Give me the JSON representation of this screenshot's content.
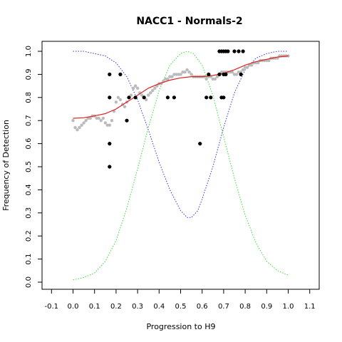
{
  "chart_data": {
    "type": "scatter",
    "title": "NACC1 - Normals-2",
    "xlabel": "Progression to H9",
    "ylabel": "Frequency of Detection",
    "xlim": [
      -0.1,
      1.1
    ],
    "ylim": [
      0.0,
      1.0
    ],
    "x_ticks": [
      "-0.1",
      "0.0",
      "0.1",
      "0.2",
      "0.3",
      "0.4",
      "0.5",
      "0.6",
      "0.7",
      "0.8",
      "0.9",
      "1.0",
      "1.1"
    ],
    "y_ticks": [
      "0.0",
      "0.1",
      "0.2",
      "0.3",
      "0.4",
      "0.5",
      "0.6",
      "0.7",
      "0.8",
      "0.9",
      "1.0"
    ],
    "grid": false,
    "series": [
      {
        "kind": "points",
        "color": "#000000",
        "points": [
          [
            0.17,
            0.9
          ],
          [
            0.17,
            0.8
          ],
          [
            0.17,
            0.6
          ],
          [
            0.17,
            0.5
          ],
          [
            0.22,
            0.9
          ],
          [
            0.25,
            0.7
          ],
          [
            0.26,
            0.8
          ],
          [
            0.29,
            0.8
          ],
          [
            0.33,
            0.8
          ],
          [
            0.44,
            0.8
          ],
          [
            0.47,
            0.8
          ],
          [
            0.59,
            0.6
          ],
          [
            0.62,
            0.8
          ],
          [
            0.64,
            0.8
          ],
          [
            0.63,
            0.9
          ],
          [
            0.68,
            0.9
          ],
          [
            0.69,
            0.8
          ],
          [
            0.7,
            0.8
          ],
          [
            0.7,
            0.9
          ],
          [
            0.71,
            0.9
          ],
          [
            0.68,
            1.0
          ],
          [
            0.69,
            1.0
          ],
          [
            0.7,
            1.0
          ],
          [
            0.71,
            1.0
          ],
          [
            0.72,
            1.0
          ],
          [
            0.75,
            1.0
          ],
          [
            0.77,
            1.0
          ],
          [
            0.79,
            1.0
          ],
          [
            0.78,
            0.9
          ]
        ]
      },
      {
        "kind": "smoothed-points",
        "color": "#bbbbbb",
        "points": [
          [
            0.0,
            0.7
          ],
          [
            0.01,
            0.67
          ],
          [
            0.02,
            0.66
          ],
          [
            0.03,
            0.67
          ],
          [
            0.04,
            0.68
          ],
          [
            0.05,
            0.69
          ],
          [
            0.06,
            0.7
          ],
          [
            0.07,
            0.71
          ],
          [
            0.08,
            0.71
          ],
          [
            0.09,
            0.72
          ],
          [
            0.1,
            0.72
          ],
          [
            0.11,
            0.71
          ],
          [
            0.12,
            0.71
          ],
          [
            0.13,
            0.7
          ],
          [
            0.14,
            0.71
          ],
          [
            0.15,
            0.69
          ],
          [
            0.16,
            0.68
          ],
          [
            0.17,
            0.68
          ],
          [
            0.18,
            0.7
          ],
          [
            0.19,
            0.74
          ],
          [
            0.2,
            0.78
          ],
          [
            0.21,
            0.8
          ],
          [
            0.22,
            0.79
          ],
          [
            0.23,
            0.77
          ],
          [
            0.24,
            0.76
          ],
          [
            0.25,
            0.78
          ],
          [
            0.26,
            0.8
          ],
          [
            0.27,
            0.81
          ],
          [
            0.28,
            0.84
          ],
          [
            0.29,
            0.85
          ],
          [
            0.3,
            0.84
          ],
          [
            0.31,
            0.82
          ],
          [
            0.32,
            0.81
          ],
          [
            0.33,
            0.8
          ],
          [
            0.34,
            0.79
          ],
          [
            0.35,
            0.81
          ],
          [
            0.36,
            0.82
          ],
          [
            0.37,
            0.83
          ],
          [
            0.38,
            0.84
          ],
          [
            0.39,
            0.85
          ],
          [
            0.4,
            0.86
          ],
          [
            0.41,
            0.86
          ],
          [
            0.42,
            0.87
          ],
          [
            0.43,
            0.88
          ],
          [
            0.44,
            0.88
          ],
          [
            0.45,
            0.89
          ],
          [
            0.46,
            0.89
          ],
          [
            0.47,
            0.9
          ],
          [
            0.48,
            0.9
          ],
          [
            0.49,
            0.9
          ],
          [
            0.5,
            0.9
          ],
          [
            0.51,
            0.91
          ],
          [
            0.52,
            0.91
          ],
          [
            0.53,
            0.92
          ],
          [
            0.54,
            0.91
          ],
          [
            0.55,
            0.9
          ],
          [
            0.56,
            0.89
          ],
          [
            0.57,
            0.89
          ],
          [
            0.58,
            0.89
          ],
          [
            0.59,
            0.89
          ],
          [
            0.6,
            0.89
          ],
          [
            0.61,
            0.89
          ],
          [
            0.62,
            0.88
          ],
          [
            0.63,
            0.89
          ],
          [
            0.64,
            0.89
          ],
          [
            0.65,
            0.88
          ],
          [
            0.66,
            0.88
          ],
          [
            0.67,
            0.89
          ],
          [
            0.68,
            0.9
          ],
          [
            0.69,
            0.91
          ],
          [
            0.7,
            0.91
          ],
          [
            0.71,
            0.91
          ],
          [
            0.72,
            0.91
          ],
          [
            0.73,
            0.91
          ],
          [
            0.74,
            0.91
          ],
          [
            0.75,
            0.9
          ],
          [
            0.76,
            0.9
          ],
          [
            0.77,
            0.91
          ],
          [
            0.78,
            0.91
          ],
          [
            0.79,
            0.92
          ],
          [
            0.8,
            0.93
          ],
          [
            0.81,
            0.93
          ],
          [
            0.82,
            0.94
          ],
          [
            0.83,
            0.94
          ],
          [
            0.84,
            0.95
          ],
          [
            0.85,
            0.95
          ],
          [
            0.86,
            0.95
          ],
          [
            0.87,
            0.96
          ],
          [
            0.88,
            0.96
          ],
          [
            0.89,
            0.96
          ],
          [
            0.9,
            0.96
          ],
          [
            0.91,
            0.96
          ],
          [
            0.92,
            0.97
          ],
          [
            0.93,
            0.97
          ],
          [
            0.94,
            0.97
          ],
          [
            0.95,
            0.97
          ],
          [
            0.96,
            0.98
          ],
          [
            0.97,
            0.98
          ],
          [
            0.98,
            0.98
          ],
          [
            0.99,
            0.98
          ],
          [
            1.0,
            0.98
          ]
        ]
      },
      {
        "kind": "line",
        "color": "#dd2222",
        "points": [
          [
            0.0,
            0.71
          ],
          [
            0.05,
            0.712
          ],
          [
            0.1,
            0.72
          ],
          [
            0.15,
            0.73
          ],
          [
            0.2,
            0.75
          ],
          [
            0.25,
            0.78
          ],
          [
            0.3,
            0.81
          ],
          [
            0.35,
            0.84
          ],
          [
            0.4,
            0.86
          ],
          [
            0.45,
            0.875
          ],
          [
            0.5,
            0.885
          ],
          [
            0.55,
            0.89
          ],
          [
            0.6,
            0.89
          ],
          [
            0.65,
            0.895
          ],
          [
            0.7,
            0.905
          ],
          [
            0.75,
            0.92
          ],
          [
            0.8,
            0.94
          ],
          [
            0.85,
            0.955
          ],
          [
            0.9,
            0.965
          ],
          [
            0.95,
            0.975
          ],
          [
            1.0,
            0.98
          ]
        ]
      },
      {
        "kind": "dotted-line",
        "color": "#3333dd",
        "points": [
          [
            0.0,
            1.0
          ],
          [
            0.05,
            1.0
          ],
          [
            0.1,
            0.99
          ],
          [
            0.15,
            0.98
          ],
          [
            0.2,
            0.95
          ],
          [
            0.25,
            0.89
          ],
          [
            0.3,
            0.79
          ],
          [
            0.35,
            0.66
          ],
          [
            0.4,
            0.52
          ],
          [
            0.45,
            0.4
          ],
          [
            0.5,
            0.31
          ],
          [
            0.53,
            0.28
          ],
          [
            0.55,
            0.28
          ],
          [
            0.58,
            0.31
          ],
          [
            0.6,
            0.36
          ],
          [
            0.65,
            0.5
          ],
          [
            0.7,
            0.67
          ],
          [
            0.75,
            0.82
          ],
          [
            0.8,
            0.92
          ],
          [
            0.85,
            0.97
          ],
          [
            0.9,
            0.99
          ],
          [
            0.95,
            1.0
          ],
          [
            1.0,
            1.0
          ]
        ]
      },
      {
        "kind": "dotted-line",
        "color": "#33dd33",
        "points": [
          [
            0.0,
            0.01
          ],
          [
            0.05,
            0.02
          ],
          [
            0.1,
            0.04
          ],
          [
            0.15,
            0.09
          ],
          [
            0.2,
            0.18
          ],
          [
            0.25,
            0.32
          ],
          [
            0.3,
            0.49
          ],
          [
            0.35,
            0.67
          ],
          [
            0.4,
            0.83
          ],
          [
            0.45,
            0.94
          ],
          [
            0.5,
            0.99
          ],
          [
            0.53,
            1.0
          ],
          [
            0.56,
            0.99
          ],
          [
            0.6,
            0.94
          ],
          [
            0.65,
            0.81
          ],
          [
            0.7,
            0.63
          ],
          [
            0.75,
            0.45
          ],
          [
            0.8,
            0.29
          ],
          [
            0.85,
            0.17
          ],
          [
            0.9,
            0.09
          ],
          [
            0.95,
            0.05
          ],
          [
            1.0,
            0.03
          ]
        ]
      }
    ]
  }
}
